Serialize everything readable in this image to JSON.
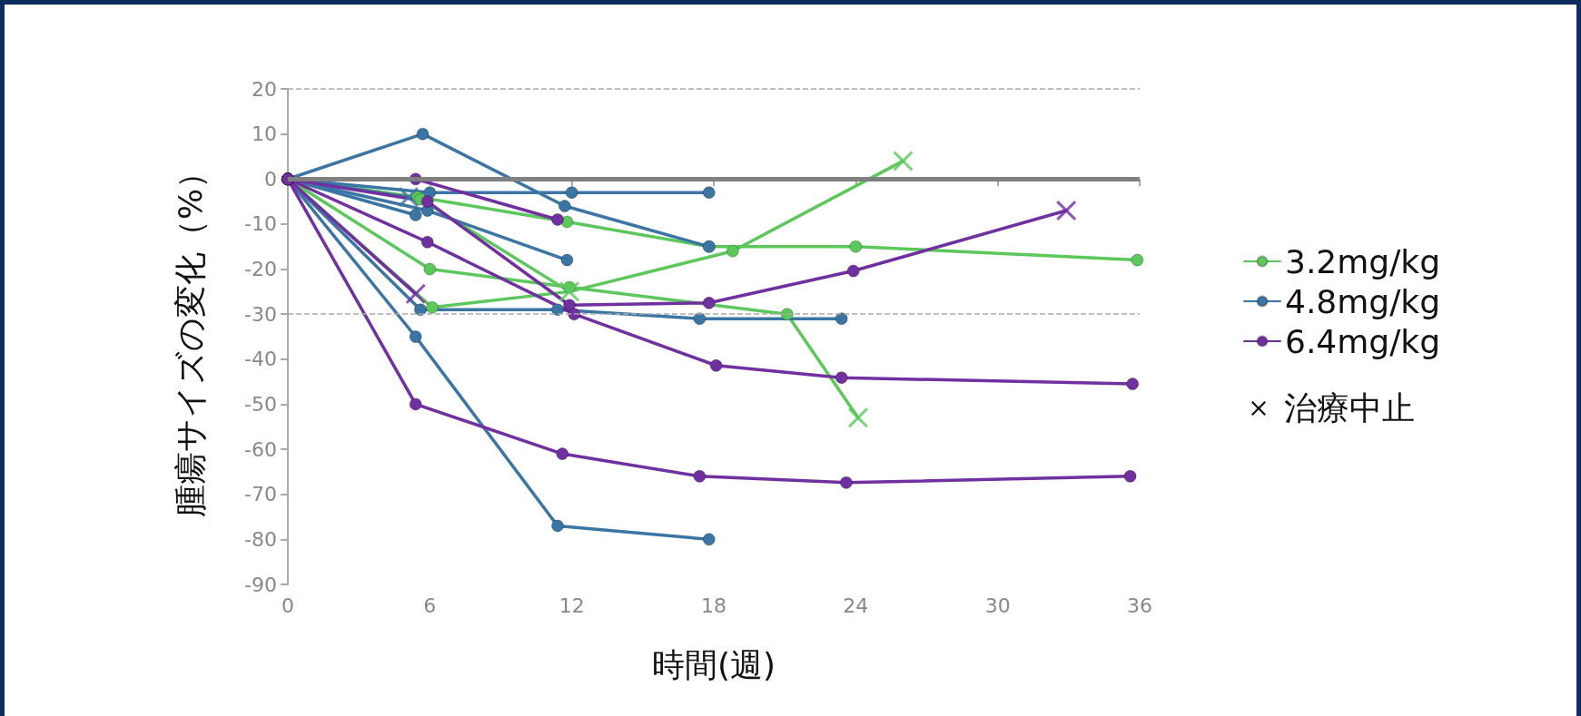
{
  "chart_data": {
    "type": "line",
    "xlabel": "時間(週)",
    "ylabel": "腫瘍サイズの変化（%）",
    "xlim": [
      0,
      36
    ],
    "xticks": [
      0,
      6,
      12,
      18,
      24,
      30,
      36
    ],
    "ylim": [
      -90,
      20
    ],
    "yticks": [
      -90,
      -80,
      -70,
      -60,
      -50,
      -40,
      -30,
      -20,
      -10,
      0,
      10,
      20
    ],
    "marker": "circle",
    "legend": "right",
    "annotations": [
      "治療中止"
    ],
    "ref_lines": [
      {
        "axis": "y",
        "value": 0,
        "color": "#808080",
        "line_style": "solid"
      },
      {
        "axis": "y",
        "value": -30,
        "color": "#aaaaaa",
        "line_style": "dashed"
      },
      {
        "axis": "y",
        "value": 20,
        "color": "#aaaaaa",
        "line_style": "dashed"
      }
    ],
    "series": [
      {
        "name": "3.2mg/kg",
        "color": "#5cc85c",
        "x": [
          0,
          5.5,
          11.8,
          17.8,
          24.0,
          35.9
        ],
        "values": [
          0,
          -4,
          -9.5,
          -15,
          -15,
          -18
        ]
      },
      {
        "color": "#5cc85c",
        "x": [
          0,
          6.0,
          11.9,
          21.1,
          24.1
        ],
        "values": [
          0,
          -20,
          -24,
          -30,
          -53
        ]
      },
      {
        "color": "#5cc85c",
        "x": [
          0,
          6.1,
          11.9,
          18.8,
          26.0
        ],
        "values": [
          0,
          -28.5,
          -25,
          -16,
          4
        ]
      },
      {
        "color": "#5cc85c",
        "x": [
          0,
          5.6,
          11.9
        ],
        "values": [
          0,
          -4.5,
          -25
        ]
      },
      {
        "name": "4.8mg/kg",
        "color": "#3a75a3",
        "x": [
          0,
          5.7,
          11.7,
          17.8
        ],
        "values": [
          0,
          10,
          -6,
          -15
        ]
      },
      {
        "color": "#3a75a3",
        "x": [
          0,
          6.0,
          12.0,
          17.8
        ],
        "values": [
          0,
          -3,
          -3,
          -3
        ]
      },
      {
        "color": "#3a75a3",
        "x": [
          0,
          5.9,
          11.8
        ],
        "values": [
          0,
          -7,
          -18
        ]
      },
      {
        "color": "#3a75a3",
        "x": [
          0,
          5.4
        ],
        "values": [
          0,
          -8
        ]
      },
      {
        "color": "#3a75a3",
        "x": [
          0,
          5.1
        ],
        "values": [
          0,
          -4
        ]
      },
      {
        "color": "#3a75a3",
        "x": [
          0,
          5.6,
          11.4,
          17.4,
          23.4
        ],
        "values": [
          0,
          -29,
          -29,
          -31,
          -31
        ]
      },
      {
        "color": "#3a75a3",
        "x": [
          0,
          5.4,
          11.4,
          17.8
        ],
        "values": [
          0,
          -35,
          -77,
          -80
        ]
      },
      {
        "name": "6.4mg/kg",
        "color": "#7030a0",
        "x": [
          0,
          5.4,
          11.4
        ],
        "values": [
          0,
          0,
          -9
        ]
      },
      {
        "color": "#7030a0",
        "x": [
          0,
          5.9,
          11.9,
          17.8,
          23.9,
          32.9
        ],
        "values": [
          0,
          -5,
          -28,
          -27.5,
          -20.4,
          -7
        ]
      },
      {
        "color": "#7030a0",
        "x": [
          0,
          5.9,
          12.1,
          18.1,
          23.4,
          35.7
        ],
        "values": [
          0,
          -14,
          -30,
          -41.4,
          -44.1,
          -45.5
        ]
      },
      {
        "color": "#7030a0",
        "x": [
          0,
          5.4
        ],
        "values": [
          0,
          -25.5
        ]
      },
      {
        "color": "#7030a0",
        "x": [
          0,
          5.4,
          11.6,
          17.4,
          23.6,
          35.6
        ],
        "values": [
          0,
          -50,
          -61,
          -66,
          -67.4,
          -66
        ]
      },
      {
        "type": "scatter",
        "marker": "cross",
        "x": [
          5.1,
          11.9,
          24.1,
          26.0,
          5.4,
          32.9
        ],
        "values": [
          -4,
          -25,
          -53,
          4,
          -25.5,
          -7
        ],
        "colors": [
          "#3a75a3",
          "#5cc85c",
          "#5cc85c",
          "#5cc85c",
          "#7030a0",
          "#7030a0"
        ]
      }
    ]
  }
}
